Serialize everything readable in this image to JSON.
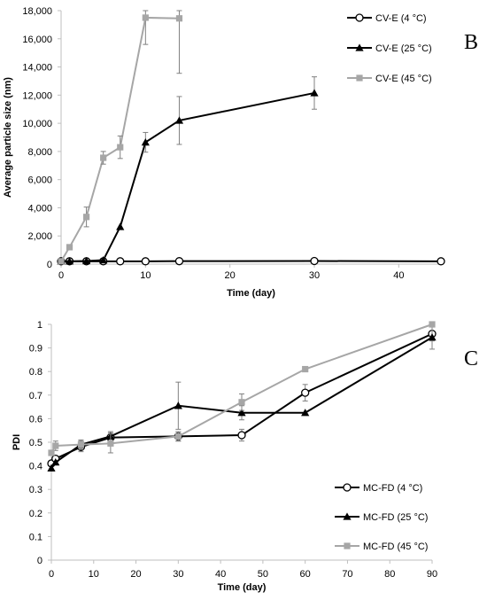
{
  "chart_data": [
    {
      "type": "line",
      "panel_label": "B",
      "xlabel": "Time (day)",
      "ylabel": "Average particle size (nm)",
      "xlim": [
        0,
        45
      ],
      "ylim": [
        0,
        18000
      ],
      "xticks": [
        0,
        10,
        20,
        30,
        40
      ],
      "yticks": [
        0,
        2000,
        4000,
        6000,
        8000,
        10000,
        12000,
        14000,
        16000,
        18000
      ],
      "ytick_labels": [
        "0",
        "2,000",
        "4,000",
        "6,000",
        "8,000",
        "10,000",
        "12,000",
        "14,000",
        "16,000",
        "18,000"
      ],
      "grid": false,
      "legend_position": "top-right",
      "series": [
        {
          "name": "CV-E (4 °C)",
          "marker": "circle-open",
          "color": "#000000",
          "x": [
            0,
            1,
            3,
            5,
            7,
            10,
            14,
            30,
            45
          ],
          "y": [
            200,
            200,
            200,
            200,
            200,
            200,
            210,
            220,
            200
          ],
          "err": [
            0,
            0,
            0,
            0,
            0,
            0,
            0,
            0,
            0
          ]
        },
        {
          "name": "CV-E (25 °C)",
          "marker": "triangle",
          "color": "#000000",
          "x": [
            0,
            1,
            3,
            5,
            7,
            10,
            14,
            30
          ],
          "y": [
            200,
            200,
            220,
            280,
            2650,
            8650,
            10200,
            12150
          ],
          "err": [
            0,
            0,
            0,
            0,
            0,
            700,
            1700,
            1150
          ]
        },
        {
          "name": "CV-E (45 °C)",
          "marker": "square",
          "color": "#a6a6a6",
          "x": [
            0,
            1,
            3,
            5,
            7,
            10,
            14
          ],
          "y": [
            200,
            1200,
            3350,
            7550,
            8300,
            17500,
            17450
          ],
          "err": [
            0,
            0,
            700,
            450,
            800,
            1900,
            3900
          ]
        }
      ]
    },
    {
      "type": "line",
      "panel_label": "C",
      "xlabel": "Time (day)",
      "ylabel": "PDI",
      "xlim": [
        0,
        90
      ],
      "ylim": [
        0,
        1
      ],
      "xticks": [
        0,
        10,
        20,
        30,
        40,
        50,
        60,
        70,
        80,
        90
      ],
      "yticks": [
        0,
        0.1,
        0.2,
        0.3,
        0.4,
        0.5,
        0.6,
        0.7,
        0.8,
        0.9,
        1
      ],
      "ytick_labels": [
        "0",
        "0.1",
        "0.2",
        "0.3",
        "0.4",
        "0.5",
        "0.6",
        "0.7",
        "0.8",
        "0.9",
        "1"
      ],
      "grid": false,
      "legend_position": "bottom-right",
      "series": [
        {
          "name": "MC-FD (4 °C)",
          "marker": "circle-open",
          "color": "#000000",
          "x": [
            0,
            1,
            7,
            14,
            30,
            45,
            60,
            90
          ],
          "y": [
            0.41,
            0.43,
            0.48,
            0.52,
            0.525,
            0.53,
            0.71,
            0.96
          ],
          "err": [
            0,
            0,
            0.02,
            0.02,
            0.02,
            0.025,
            0.035,
            0.03
          ]
        },
        {
          "name": "MC-FD (25 °C)",
          "marker": "triangle",
          "color": "#000000",
          "x": [
            0,
            1,
            7,
            14,
            30,
            45,
            60,
            90
          ],
          "y": [
            0.39,
            0.415,
            0.49,
            0.525,
            0.655,
            0.625,
            0.625,
            0.945
          ],
          "err": [
            0,
            0,
            0.015,
            0.02,
            0.1,
            0.03,
            0,
            0.05
          ]
        },
        {
          "name": "MC-FD (45 °C)",
          "marker": "square",
          "color": "#a6a6a6",
          "x": [
            0,
            1,
            7,
            14,
            30,
            45,
            60,
            90
          ],
          "y": [
            0.455,
            0.485,
            0.49,
            0.495,
            0.525,
            0.67,
            0.81,
            1.0
          ],
          "err": [
            0,
            0.02,
            0.02,
            0.04,
            0.02,
            0.035,
            0,
            0
          ]
        }
      ]
    }
  ]
}
